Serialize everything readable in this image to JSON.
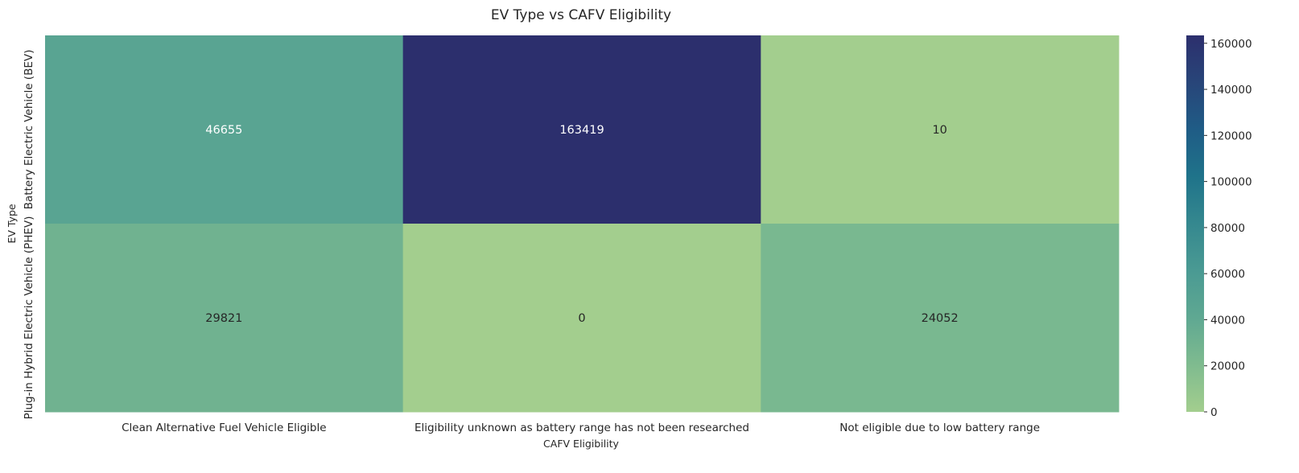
{
  "chart_data": {
    "type": "heatmap",
    "title": "EV Type vs CAFV Eligibility",
    "xlabel": "CAFV Eligibility",
    "ylabel": "EV Type",
    "x_categories": [
      "Clean Alternative Fuel Vehicle Eligible",
      "Eligibility unknown as battery range has not been researched",
      "Not eligible due to low battery range"
    ],
    "y_categories": [
      "Battery Electric Vehicle (BEV)",
      "Plug-in Hybrid Electric Vehicle (PHEV)"
    ],
    "values": [
      [
        46655,
        163419,
        10
      ],
      [
        29821,
        0,
        24052
      ]
    ],
    "colorbar": {
      "min": 0,
      "max": 163419,
      "ticks": [
        "0",
        "20000",
        "40000",
        "60000",
        "80000",
        "100000",
        "120000",
        "140000",
        "160000"
      ],
      "tick_values": [
        0,
        20000,
        40000,
        60000,
        80000,
        100000,
        120000,
        140000,
        160000
      ]
    },
    "colormap": [
      "#a3ce8e",
      "#7fbb8f",
      "#5fa892",
      "#4a9a93",
      "#35888f",
      "#1f738a",
      "#1f5c86",
      "#284579",
      "#2c2f6d"
    ],
    "grid": false
  }
}
